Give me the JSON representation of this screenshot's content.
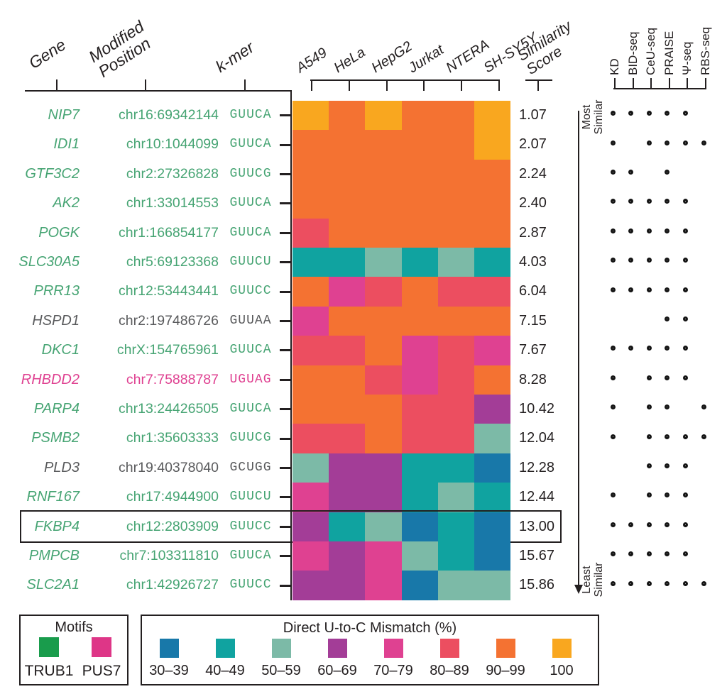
{
  "header": {
    "gene": "Gene",
    "modified_position_lines": [
      "Modified",
      "Position"
    ],
    "kmer": "k-mer",
    "similarity_score_lines": [
      "Similarity",
      "Score"
    ]
  },
  "methods": [
    "KD",
    "BID-seq",
    "CeU-seq",
    "PRAISE",
    "Ψ-seq",
    "RBS-seq"
  ],
  "similarity_axis": {
    "most_lines": [
      "Most",
      "Similar"
    ],
    "least_lines": [
      "Least",
      "Similar"
    ]
  },
  "palette": {
    "trub1_text": "#46a473",
    "pus7_text": "#df4191",
    "no_motif_gray": "#595a5c",
    "line_black": "#231f20"
  },
  "legend_motifs": {
    "title": "Motifs",
    "items": [
      {
        "label": "TRUB1",
        "color": "#199c4c"
      },
      {
        "label": "PUS7",
        "color": "#de3687"
      }
    ]
  },
  "legend_mismatch": {
    "title": "Direct U-to-C Mismatch (%)",
    "bins": [
      {
        "key": "30-39",
        "label": "30–39",
        "color": "#1878a9"
      },
      {
        "key": "40-49",
        "label": "40–49",
        "color": "#10a3a0"
      },
      {
        "key": "50-59",
        "label": "50–59",
        "color": "#7cbaa7"
      },
      {
        "key": "60-69",
        "label": "60–69",
        "color": "#a33d97"
      },
      {
        "key": "70-79",
        "label": "70–79",
        "color": "#df4191"
      },
      {
        "key": "80-89",
        "label": "80–89",
        "color": "#ec4e60"
      },
      {
        "key": "90-99",
        "label": "90–99",
        "color": "#f47232"
      },
      {
        "key": "100",
        "label": "100",
        "color": "#f9a71f"
      }
    ]
  },
  "chart_data": {
    "type": "heatmap",
    "columns": [
      "A549",
      "HeLa",
      "HepG2",
      "Jurkat",
      "NTERA",
      "SH-SY5Y"
    ],
    "value_bins": [
      "30-39",
      "40-49",
      "50-59",
      "60-69",
      "70-79",
      "80-89",
      "90-99",
      "100"
    ],
    "value_label": "Direct U-to-C Mismatch (%)",
    "rows": [
      {
        "gene": "NIP7",
        "modified_position": "chr16:69342144",
        "kmer": "GUUCA",
        "motif": "TRUB1",
        "mismatch_bins": [
          "100",
          "90-99",
          "100",
          "90-99",
          "90-99",
          "100"
        ],
        "similarity_score": "1.07",
        "detected_by": [
          "KD",
          "BID-seq",
          "CeU-seq",
          "PRAISE",
          "Ψ-seq"
        ],
        "highlighted": false
      },
      {
        "gene": "IDI1",
        "modified_position": "chr10:1044099",
        "kmer": "GUUCA",
        "motif": "TRUB1",
        "mismatch_bins": [
          "90-99",
          "90-99",
          "90-99",
          "90-99",
          "90-99",
          "100"
        ],
        "similarity_score": "2.07",
        "detected_by": [
          "KD",
          "CeU-seq",
          "PRAISE",
          "Ψ-seq",
          "RBS-seq"
        ],
        "highlighted": false
      },
      {
        "gene": "GTF3C2",
        "modified_position": "chr2:27326828",
        "kmer": "GUUCG",
        "motif": "TRUB1",
        "mismatch_bins": [
          "90-99",
          "90-99",
          "90-99",
          "90-99",
          "90-99",
          "90-99"
        ],
        "similarity_score": "2.24",
        "detected_by": [
          "KD",
          "BID-seq",
          "PRAISE"
        ],
        "highlighted": false
      },
      {
        "gene": "AK2",
        "modified_position": "chr1:33014553",
        "kmer": "GUUCA",
        "motif": "TRUB1",
        "mismatch_bins": [
          "90-99",
          "90-99",
          "90-99",
          "90-99",
          "90-99",
          "90-99"
        ],
        "similarity_score": "2.40",
        "detected_by": [
          "KD",
          "BID-seq",
          "CeU-seq",
          "PRAISE",
          "Ψ-seq"
        ],
        "highlighted": false
      },
      {
        "gene": "POGK",
        "modified_position": "chr1:166854177",
        "kmer": "GUUCA",
        "motif": "TRUB1",
        "mismatch_bins": [
          "80-89",
          "90-99",
          "90-99",
          "90-99",
          "90-99",
          "90-99"
        ],
        "similarity_score": "2.87",
        "detected_by": [
          "KD",
          "BID-seq",
          "CeU-seq",
          "PRAISE",
          "Ψ-seq"
        ],
        "highlighted": false
      },
      {
        "gene": "SLC30A5",
        "modified_position": "chr5:69123368",
        "kmer": "GUUCU",
        "motif": "TRUB1",
        "mismatch_bins": [
          "40-49",
          "40-49",
          "50-59",
          "40-49",
          "50-59",
          "40-49"
        ],
        "similarity_score": "4.03",
        "detected_by": [
          "KD",
          "BID-seq",
          "CeU-seq",
          "PRAISE",
          "Ψ-seq"
        ],
        "highlighted": false
      },
      {
        "gene": "PRR13",
        "modified_position": "chr12:53443441",
        "kmer": "GUUCC",
        "motif": "TRUB1",
        "mismatch_bins": [
          "90-99",
          "70-79",
          "80-89",
          "90-99",
          "80-89",
          "80-89"
        ],
        "similarity_score": "6.04",
        "detected_by": [
          "KD",
          "BID-seq",
          "CeU-seq",
          "PRAISE",
          "Ψ-seq"
        ],
        "highlighted": false
      },
      {
        "gene": "HSPD1",
        "modified_position": "chr2:197486726",
        "kmer": "GUUAA",
        "motif": null,
        "mismatch_bins": [
          "70-79",
          "90-99",
          "90-99",
          "90-99",
          "90-99",
          "90-99"
        ],
        "similarity_score": "7.15",
        "detected_by": [
          "PRAISE",
          "Ψ-seq"
        ],
        "highlighted": false
      },
      {
        "gene": "DKC1",
        "modified_position": "chrX:154765961",
        "kmer": "GUUCA",
        "motif": "TRUB1",
        "mismatch_bins": [
          "80-89",
          "80-89",
          "90-99",
          "70-79",
          "80-89",
          "70-79"
        ],
        "similarity_score": "7.67",
        "detected_by": [
          "KD",
          "BID-seq",
          "CeU-seq",
          "PRAISE",
          "Ψ-seq"
        ],
        "highlighted": false
      },
      {
        "gene": "RHBDD2",
        "modified_position": "chr7:75888787",
        "kmer": "UGUAG",
        "motif": "PUS7",
        "mismatch_bins": [
          "90-99",
          "90-99",
          "80-89",
          "70-79",
          "80-89",
          "90-99"
        ],
        "similarity_score": "8.28",
        "detected_by": [
          "KD",
          "CeU-seq",
          "PRAISE",
          "Ψ-seq"
        ],
        "highlighted": false
      },
      {
        "gene": "PARP4",
        "modified_position": "chr13:24426505",
        "kmer": "GUUCA",
        "motif": "TRUB1",
        "mismatch_bins": [
          "90-99",
          "90-99",
          "90-99",
          "80-89",
          "80-89",
          "60-69"
        ],
        "similarity_score": "10.42",
        "detected_by": [
          "KD",
          "CeU-seq",
          "PRAISE",
          "RBS-seq"
        ],
        "highlighted": false
      },
      {
        "gene": "PSMB2",
        "modified_position": "chr1:35603333",
        "kmer": "GUUCG",
        "motif": "TRUB1",
        "mismatch_bins": [
          "80-89",
          "80-89",
          "90-99",
          "80-89",
          "80-89",
          "50-59"
        ],
        "similarity_score": "12.04",
        "detected_by": [
          "KD",
          "CeU-seq",
          "PRAISE",
          "Ψ-seq",
          "RBS-seq"
        ],
        "highlighted": false
      },
      {
        "gene": "PLD3",
        "modified_position": "chr19:40378040",
        "kmer": "GCUGG",
        "motif": null,
        "mismatch_bins": [
          "50-59",
          "60-69",
          "60-69",
          "40-49",
          "40-49",
          "30-39"
        ],
        "similarity_score": "12.28",
        "detected_by": [
          "CeU-seq",
          "PRAISE",
          "Ψ-seq"
        ],
        "highlighted": false
      },
      {
        "gene": "RNF167",
        "modified_position": "chr17:4944900",
        "kmer": "GUUCU",
        "motif": "TRUB1",
        "mismatch_bins": [
          "70-79",
          "60-69",
          "60-69",
          "40-49",
          "50-59",
          "40-49"
        ],
        "similarity_score": "12.44",
        "detected_by": [
          "KD",
          "CeU-seq",
          "PRAISE",
          "Ψ-seq"
        ],
        "highlighted": false
      },
      {
        "gene": "FKBP4",
        "modified_position": "chr12:2803909",
        "kmer": "GUUCC",
        "motif": "TRUB1",
        "mismatch_bins": [
          "60-69",
          "40-49",
          "50-59",
          "30-39",
          "40-49",
          "30-39"
        ],
        "similarity_score": "13.00",
        "detected_by": [
          "KD",
          "BID-seq",
          "CeU-seq",
          "PRAISE",
          "Ψ-seq"
        ],
        "highlighted": true
      },
      {
        "gene": "PMPCB",
        "modified_position": "chr7:103311810",
        "kmer": "GUUCA",
        "motif": "TRUB1",
        "mismatch_bins": [
          "70-79",
          "60-69",
          "70-79",
          "50-59",
          "40-49",
          "30-39"
        ],
        "similarity_score": "15.67",
        "detected_by": [
          "KD",
          "BID-seq",
          "CeU-seq",
          "PRAISE",
          "Ψ-seq"
        ],
        "highlighted": false
      },
      {
        "gene": "SLC2A1",
        "modified_position": "chr1:42926727",
        "kmer": "GUUCC",
        "motif": "TRUB1",
        "mismatch_bins": [
          "60-69",
          "60-69",
          "70-79",
          "30-39",
          "50-59",
          "50-59"
        ],
        "similarity_score": "15.86",
        "detected_by": [
          "KD",
          "BID-seq",
          "CeU-seq",
          "PRAISE",
          "Ψ-seq",
          "RBS-seq"
        ],
        "highlighted": false
      }
    ]
  }
}
